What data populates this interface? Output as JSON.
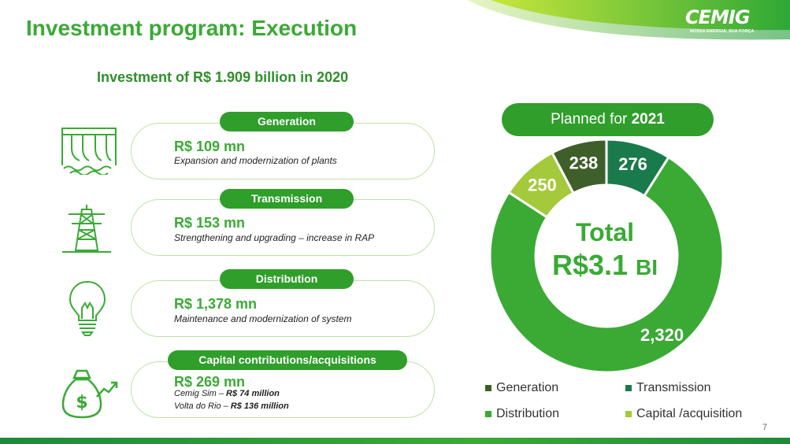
{
  "header": {
    "title": "Investment program: Execution",
    "logo_text": "CEMIG",
    "logo_tagline": "NOSSA ENERGIA, SUA FORÇA"
  },
  "subtitle": "Investment of R$ 1.909 billion in 2020",
  "sections": [
    {
      "label": "Generation",
      "amount": "R$ 109 mn",
      "description": "Expansion and modernization of plants",
      "icon": "hydro-plant-icon"
    },
    {
      "label": "Transmission",
      "amount": "R$ 153 mn",
      "description": "Strengthening and upgrading – increase in RAP",
      "icon": "transmission-tower-icon"
    },
    {
      "label": "Distribution",
      "amount": "R$ 1,378 mn",
      "description": "Maintenance and modernization of system",
      "icon": "light-bulb-icon"
    },
    {
      "label": "Capital contributions/acquisitions",
      "amount": "R$ 269 mn",
      "details": [
        {
          "name": "Cemig Sim    –",
          "value": "R$  74 million"
        },
        {
          "name": "Volta do Rio –",
          "value": "R$ 136 million"
        }
      ],
      "icon": "money-bag-icon"
    }
  ],
  "planned": {
    "prefix": "Planned for ",
    "year": "2021"
  },
  "total": {
    "line1": "Total",
    "value": "R$3.1",
    "unit": "BI"
  },
  "chart_data": {
    "type": "pie",
    "categories": [
      "Transmission",
      "Distribution",
      "Capital /acquisition",
      "Generation"
    ],
    "values": [
      276,
      2320,
      250,
      238
    ],
    "labels": [
      "276",
      "2,320",
      "250",
      "238"
    ],
    "colors": [
      "#1a7a4c",
      "#3aaa35",
      "#a4c93a",
      "#3f5f2a"
    ],
    "legend": [
      "Generation",
      "Transmission",
      "Distribution",
      "Capital /acquisition"
    ],
    "legend_colors": [
      "#3f5f2a",
      "#1a7a4c",
      "#3aaa35",
      "#a4c93a"
    ],
    "legend_position": "bottom"
  },
  "page_number": "7",
  "colors": {
    "accent": "#3aaa35",
    "dark_green": "#2f9e2a"
  }
}
